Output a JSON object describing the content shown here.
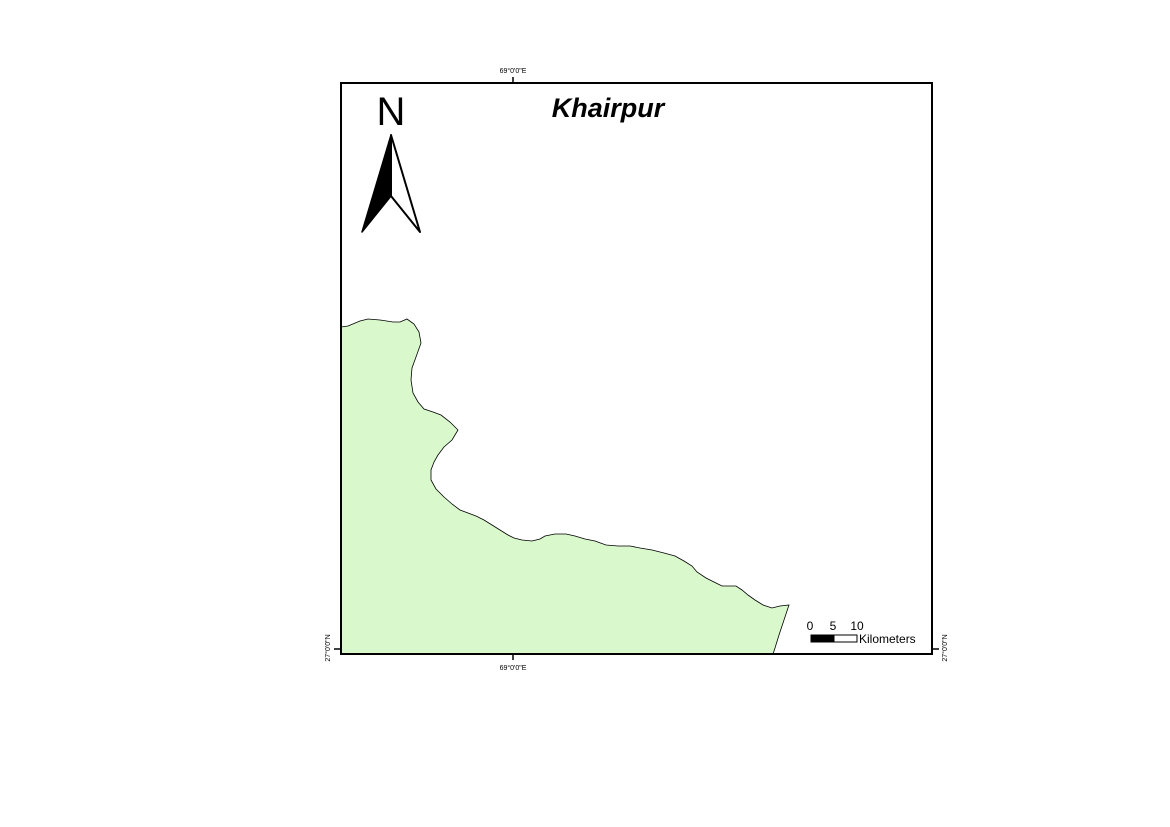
{
  "map": {
    "title": "Khairpur",
    "north_label": "N",
    "region_fill": "#d9f8cc",
    "region_stroke": "#000000",
    "frame_color": "#000000",
    "graticule": {
      "top_longitude": "69°0'0\"E",
      "bottom_longitude": "69°0'0\"E",
      "left_latitude": "27°0'0\"N",
      "right_latitude": "27°0'0\"N"
    },
    "scale_bar": {
      "ticks": [
        "0",
        "5",
        "10"
      ],
      "units": "Kilometers"
    }
  }
}
